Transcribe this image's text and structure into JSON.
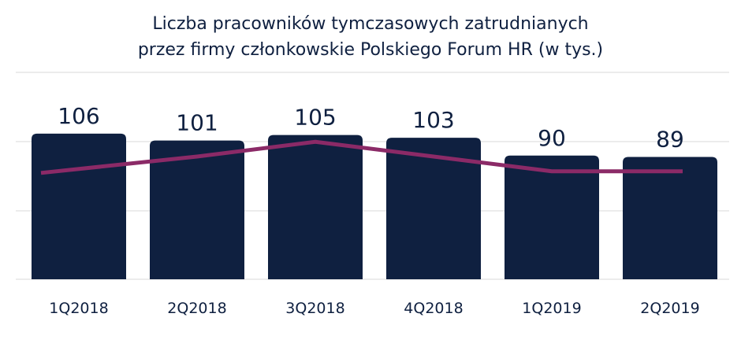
{
  "chart_data": {
    "type": "bar",
    "title_lines": [
      "Liczba pracowników tymczasowych zatrudnianych",
      "przez firmy członkowskie Polskiego Forum HR (w tys.)"
    ],
    "categories": [
      "1Q2018",
      "2Q2018",
      "3Q2018",
      "4Q2018",
      "1Q2019",
      "2Q2019"
    ],
    "values": [
      106,
      101,
      105,
      103,
      90,
      89
    ],
    "data_labels": [
      "106",
      "101",
      "105",
      "103",
      "90",
      "89"
    ],
    "line_series": {
      "values": [
        65,
        75,
        84,
        75,
        66,
        66
      ]
    },
    "ylim": [
      0,
      150
    ],
    "line_ylim": [
      0,
      100
    ],
    "colors": {
      "bar": "#0f2040",
      "line": "#8b2a67",
      "grid": "#d9d9d9",
      "text": "#0f2040"
    },
    "grid": true,
    "legend": "none"
  }
}
